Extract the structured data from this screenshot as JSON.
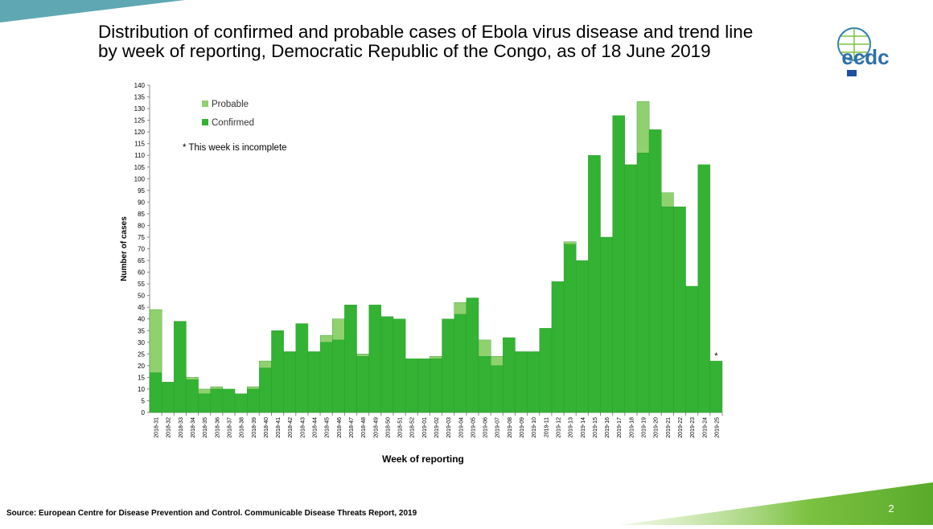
{
  "chart_data": {
    "type": "stacked_bar",
    "title": [
      "Distribution of confirmed and probable cases of Ebola virus disease and trend line",
      "by week of reporting, Democratic Republic of the Congo, as of 18 June 2019"
    ],
    "x_label": "Week of reporting",
    "y_label": "Number of cases",
    "annotation": "* This week is incomplete",
    "incomplete_marker": "*",
    "categories": [
      "2018-31",
      "2018-32",
      "2018-33",
      "2018-34",
      "2018-35",
      "2018-36",
      "2018-37",
      "2018-38",
      "2018-39",
      "2018-40",
      "2018-41",
      "2018-42",
      "2018-43",
      "2018-44",
      "2018-45",
      "2018-46",
      "2018-47",
      "2018-48",
      "2018-49",
      "2018-50",
      "2018-51",
      "2018-52",
      "2019-01",
      "2019-02",
      "2019-03",
      "2019-04",
      "2019-05",
      "2019-06",
      "2019-07",
      "2019-08",
      "2019-09",
      "2019-10",
      "2019-11",
      "2019-12",
      "2019-13",
      "2019-14",
      "2019-15",
      "2019-16",
      "2019-17",
      "2019-18",
      "2019-19",
      "2019-20",
      "2019-21",
      "2019-22",
      "2019-23",
      "2019-24",
      "2019-25"
    ],
    "series": [
      {
        "name": "Confirmed",
        "color": "#33b233",
        "values": [
          17,
          13,
          39,
          14,
          8,
          10,
          10,
          8,
          10,
          19,
          35,
          26,
          38,
          26,
          30,
          31,
          46,
          24,
          46,
          41,
          40,
          23,
          23,
          23,
          40,
          42,
          49,
          24,
          20,
          32,
          26,
          26,
          36,
          56,
          72,
          65,
          110,
          75,
          127,
          106,
          111,
          121,
          88,
          88,
          54,
          106,
          22
        ]
      },
      {
        "name": "Probable",
        "color": "#8fd16f",
        "values": [
          27,
          0,
          0,
          1,
          2,
          1,
          0,
          0,
          1,
          3,
          0,
          0,
          0,
          0,
          3,
          9,
          0,
          1,
          0,
          0,
          0,
          0,
          0,
          1,
          0,
          5,
          0,
          7,
          4,
          0,
          0,
          0,
          0,
          0,
          1,
          0,
          0,
          0,
          0,
          0,
          22,
          0,
          6,
          0,
          0,
          0,
          0
        ]
      }
    ],
    "ylim": [
      0,
      140
    ],
    "yticks": [
      0,
      5,
      10,
      15,
      20,
      25,
      30,
      35,
      40,
      45,
      50,
      55,
      60,
      65,
      70,
      75,
      80,
      85,
      90,
      95,
      100,
      105,
      110,
      115,
      120,
      125,
      130,
      135,
      140
    ],
    "grid": false,
    "legend": "top-left"
  },
  "source": "Source: European Centre for Disease Prevention and Control. Communicable Disease Threats Report, 2019",
  "logo": "ecdc",
  "slide_number": 2
}
